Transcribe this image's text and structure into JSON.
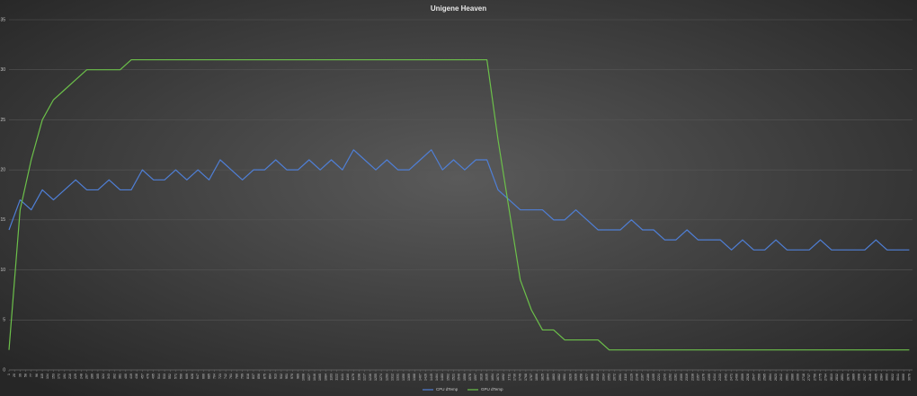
{
  "chart_data": {
    "type": "line",
    "title": "Unigene Heaven",
    "x": [
      1,
      39,
      77,
      115,
      153,
      191,
      229,
      267,
      305,
      343,
      381,
      419,
      457,
      495,
      533,
      571,
      609,
      647,
      685,
      723,
      761,
      799,
      837,
      875,
      913,
      951,
      989,
      1027,
      1065,
      1103,
      1141,
      1179,
      1217,
      1255,
      1293,
      1331,
      1369,
      1407,
      1445,
      1483,
      1521,
      1559,
      1597,
      1635,
      1673,
      1711,
      1749,
      1787,
      1825,
      1863,
      1901,
      1939,
      1977,
      2015,
      2053,
      2091,
      2129,
      2167,
      2205,
      2243,
      2281,
      2319,
      2357,
      2395,
      2433,
      2471,
      2509,
      2547,
      2585,
      2623,
      2661,
      2699,
      2737,
      2775,
      2813,
      2851,
      2889,
      2927,
      2965,
      3003,
      3041,
      3079
    ],
    "series": [
      {
        "name": "CPU dTemp",
        "color": "#4f7fd6",
        "values": [
          14,
          17,
          16,
          18,
          17,
          18,
          19,
          18,
          18,
          19,
          18,
          18,
          20,
          19,
          19,
          20,
          19,
          20,
          19,
          21,
          20,
          19,
          20,
          20,
          21,
          20,
          20,
          21,
          20,
          21,
          20,
          22,
          21,
          20,
          21,
          20,
          20,
          21,
          22,
          20,
          21,
          20,
          21,
          21,
          18,
          17,
          16,
          16,
          16,
          15,
          15,
          16,
          15,
          14,
          14,
          14,
          15,
          14,
          14,
          13,
          13,
          14,
          13,
          13,
          13,
          12,
          13,
          12,
          12,
          13,
          12,
          12,
          12,
          13,
          12,
          12,
          12,
          12,
          13,
          12,
          12,
          12
        ]
      },
      {
        "name": "GPU dTemp",
        "color": "#6cc04a",
        "values": [
          2,
          16,
          21,
          25,
          27,
          28,
          29,
          30,
          30,
          30,
          30,
          31,
          31,
          31,
          31,
          31,
          31,
          31,
          31,
          31,
          31,
          31,
          31,
          31,
          31,
          31,
          31,
          31,
          31,
          31,
          31,
          31,
          31,
          31,
          31,
          31,
          31,
          31,
          31,
          31,
          31,
          31,
          31,
          31,
          23,
          16,
          9,
          6,
          4,
          4,
          3,
          3,
          3,
          3,
          2,
          2,
          2,
          2,
          2,
          2,
          2,
          2,
          2,
          2,
          2,
          2,
          2,
          2,
          2,
          2,
          2,
          2,
          2,
          2,
          2,
          2,
          2,
          2,
          2,
          2,
          2,
          2
        ]
      }
    ],
    "xlim": [
      1,
      3090
    ],
    "xticks": [
      1,
      20,
      39,
      58,
      77,
      96,
      115,
      134,
      153,
      172,
      191,
      210,
      229,
      248,
      267,
      286,
      305,
      324,
      343,
      362,
      381,
      400,
      419,
      438,
      457,
      476,
      495,
      514,
      533,
      552,
      571,
      590,
      609,
      628,
      647,
      666,
      685,
      704,
      723,
      742,
      761,
      780,
      799,
      818,
      837,
      856,
      875,
      894,
      913,
      932,
      951,
      970,
      989,
      1008,
      1027,
      1046,
      1065,
      1084,
      1103,
      1122,
      1141,
      1160,
      1179,
      1198,
      1217,
      1236,
      1255,
      1274,
      1293,
      1312,
      1331,
      1350,
      1369,
      1388,
      1407,
      1426,
      1445,
      1464,
      1483,
      1502,
      1521,
      1540,
      1559,
      1578,
      1597,
      1616,
      1635,
      1654,
      1673,
      1692,
      1711,
      1730,
      1749,
      1768,
      1787,
      1806,
      1825,
      1844,
      1863,
      1882,
      1901,
      1920,
      1939,
      1958,
      1977,
      1996,
      2015,
      2034,
      2053,
      2072,
      2091,
      2110,
      2129,
      2148,
      2167,
      2186,
      2205,
      2224,
      2243,
      2262,
      2281,
      2300,
      2319,
      2338,
      2357,
      2376,
      2395,
      2414,
      2433,
      2452,
      2471,
      2490,
      2509,
      2528,
      2547,
      2566,
      2585,
      2604,
      2623,
      2642,
      2661,
      2680,
      2699,
      2718,
      2737,
      2756,
      2775,
      2794,
      2813,
      2832,
      2851,
      2870,
      2889,
      2908,
      2927,
      2946,
      2965,
      2984,
      3003,
      3022,
      3041,
      3060,
      3079
    ],
    "ylim": [
      0,
      35
    ],
    "yticks": [
      0,
      5,
      10,
      15,
      20,
      25,
      30,
      35
    ],
    "grid": true
  }
}
